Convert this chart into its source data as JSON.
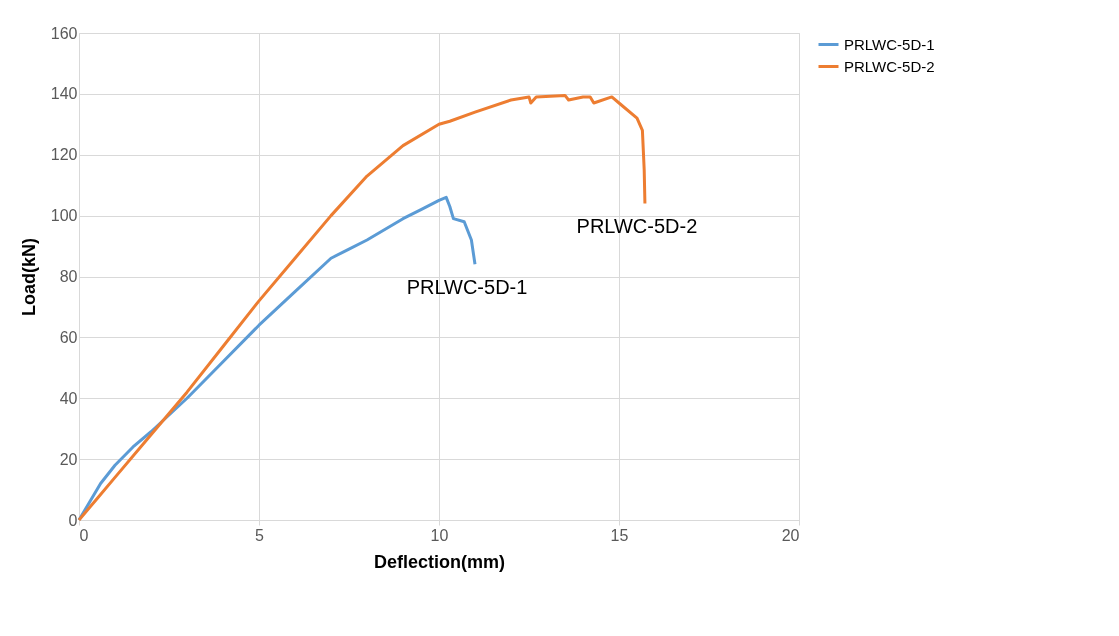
{
  "chart_data": {
    "type": "line",
    "xlabel": "Deflection(mm)",
    "ylabel": "Load(kN)",
    "xlim": [
      0,
      20
    ],
    "ylim": [
      0,
      160
    ],
    "xticks": [
      0,
      5,
      10,
      15,
      20
    ],
    "yticks": [
      0,
      20,
      40,
      60,
      80,
      100,
      120,
      140,
      160
    ],
    "grid": true,
    "legend": "right",
    "marker": "none",
    "line_style": "solid",
    "series": [
      {
        "name": "PRLWC-5D-1",
        "color": "#5b9bd5",
        "x": [
          0,
          0.3,
          0.6,
          1,
          1.5,
          2,
          3,
          4,
          5,
          6,
          7,
          7.5,
          8,
          9,
          9.5,
          10,
          10.2,
          10.3,
          10.4,
          10.7,
          10.9,
          11.0
        ],
        "values": [
          0,
          6,
          12,
          18,
          24,
          29,
          40,
          52,
          64,
          75,
          86,
          89,
          92,
          99,
          102,
          105,
          106,
          103,
          99,
          98,
          92,
          84
        ]
      },
      {
        "name": "PRLWC-5D-2",
        "color": "#ed7d31",
        "x": [
          0,
          0.5,
          1,
          2,
          3,
          4,
          5,
          6,
          7,
          8,
          9,
          10,
          10.3,
          11,
          12,
          12.5,
          12.55,
          12.7,
          13.5,
          13.6,
          14,
          14.2,
          14.3,
          14.8,
          15,
          15.5,
          15.65,
          15.7,
          15.72
        ],
        "values": [
          0,
          7,
          14,
          28,
          42,
          57,
          72,
          86,
          100,
          113,
          123,
          130,
          131,
          134,
          138,
          139,
          137,
          139,
          139.5,
          138,
          139,
          139,
          137,
          139,
          137,
          132,
          128,
          115,
          104
        ]
      }
    ],
    "annotations": [
      "PRLWC-5D-1",
      "PRLWC-5D-2"
    ]
  }
}
